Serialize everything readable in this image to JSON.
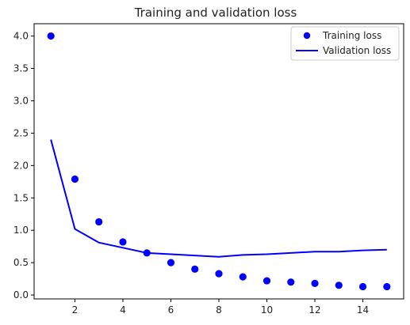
{
  "chart_data": {
    "type": "scatter",
    "title": "Training and validation loss",
    "xlabel": "",
    "ylabel": "",
    "x": [
      1,
      2,
      3,
      4,
      5,
      6,
      7,
      8,
      9,
      10,
      11,
      12,
      13,
      14,
      15
    ],
    "series": [
      {
        "name": "Training loss",
        "kind": "scatter",
        "color": "#0000ff",
        "values": [
          4.0,
          1.79,
          1.13,
          0.82,
          0.65,
          0.5,
          0.4,
          0.33,
          0.28,
          0.22,
          0.2,
          0.18,
          0.15,
          0.13,
          0.13
        ]
      },
      {
        "name": "Validation loss",
        "kind": "line",
        "color": "#0000ff",
        "values": [
          2.4,
          1.02,
          0.81,
          0.73,
          0.65,
          0.63,
          0.61,
          0.59,
          0.62,
          0.63,
          0.65,
          0.67,
          0.67,
          0.69,
          0.7
        ]
      }
    ],
    "xlim": [
      0.3,
      15.7
    ],
    "ylim": [
      -0.06,
      4.19
    ],
    "x_ticks": [
      2,
      4,
      6,
      8,
      10,
      12,
      14
    ],
    "y_ticks": [
      0.0,
      0.5,
      1.0,
      1.5,
      2.0,
      2.5,
      3.0,
      3.5,
      4.0
    ],
    "grid": false,
    "legend_position": "top-right"
  }
}
